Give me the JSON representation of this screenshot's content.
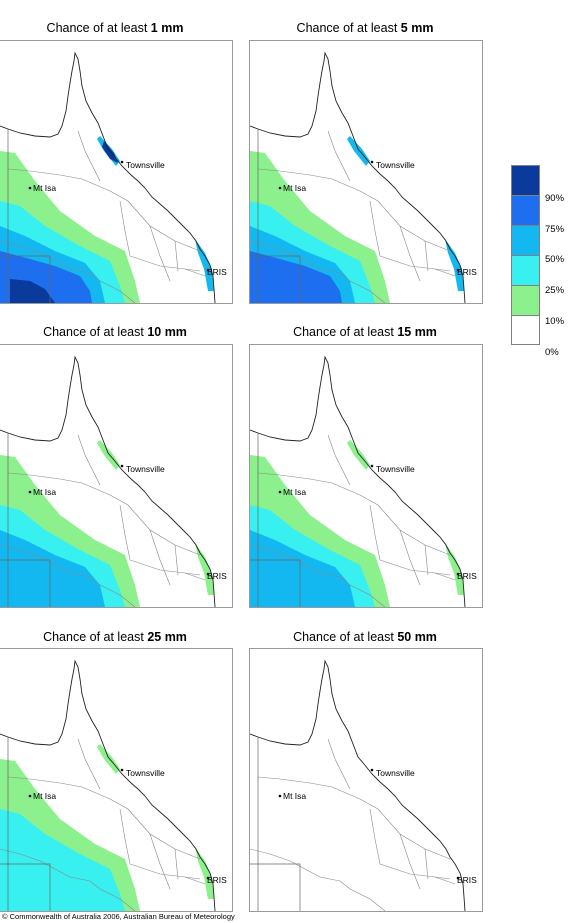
{
  "panels": [
    {
      "title_prefix": "Chance of at least ",
      "amount": "1 mm",
      "level": 6
    },
    {
      "title_prefix": "Chance of at least ",
      "amount": "5 mm",
      "level": 5
    },
    {
      "title_prefix": "Chance of at least ",
      "amount": "10 mm",
      "level": 4
    },
    {
      "title_prefix": "Chance of at least ",
      "amount": "15 mm",
      "level": 3
    },
    {
      "title_prefix": "Chance of at least ",
      "amount": "25 mm",
      "level": 2
    },
    {
      "title_prefix": "Chance of at least ",
      "amount": "50 mm",
      "level": 0
    }
  ],
  "places": {
    "townsville": "Townsville",
    "mt_isa": "Mt Isa",
    "bris": "BRIS"
  },
  "legend": {
    "labels": [
      "90%",
      "75%",
      "50%",
      "25%",
      "10%",
      "0%"
    ],
    "colors": [
      "#0a3a9c",
      "#1e6ef0",
      "#14b8f0",
      "#38f0f0",
      "#8cf08c",
      "#ffffff"
    ]
  },
  "copyright": "© Commonwealth of Australia 2006, Australian Bureau of Meteorology"
}
